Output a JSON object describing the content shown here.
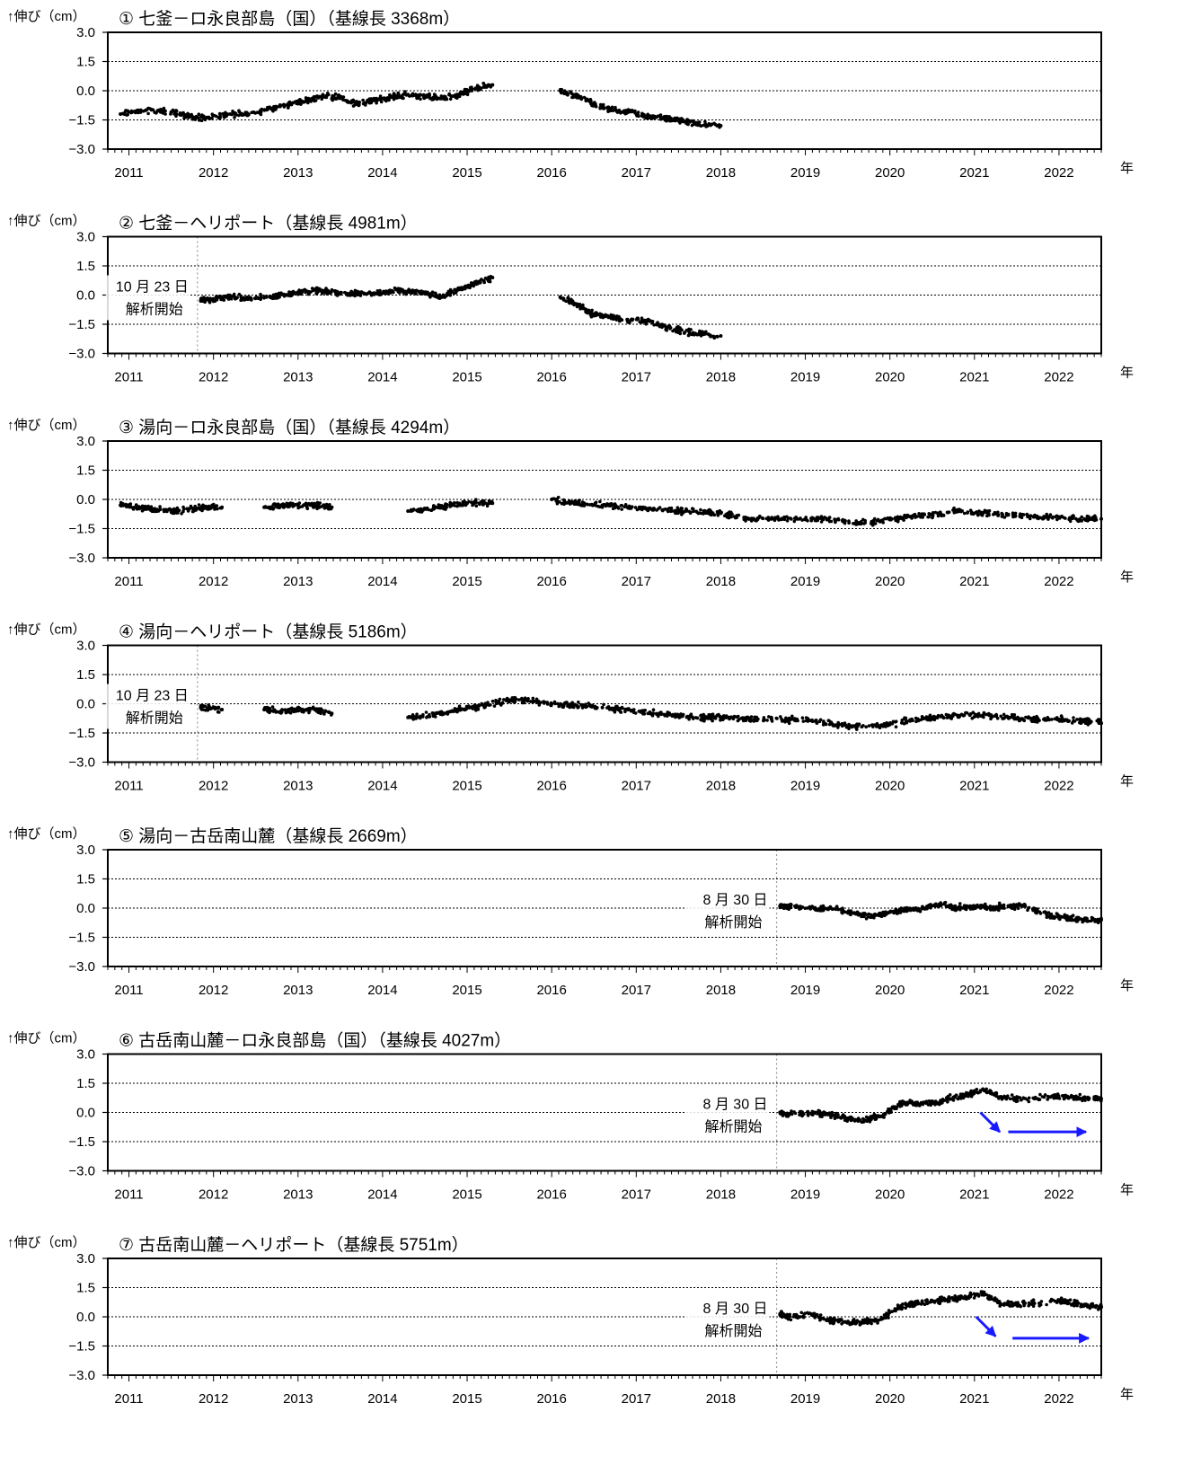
{
  "ylabel": "↑伸び（cm）",
  "xunit": "年",
  "colors": {
    "points": "#000000",
    "arrow": "#1a1aff",
    "frame": "#000000",
    "grid": "#000000"
  },
  "chart_data": [
    {
      "type": "scatter",
      "title": "① 七釜－ロ永良部島（国）（基線長 3368m）",
      "ylim": [
        -3.0,
        3.0
      ],
      "yticks": [
        "3.0",
        "1.5",
        "0.0",
        "-1.5",
        "-3.0"
      ],
      "xlim": [
        2010.75,
        2022.5
      ],
      "xticks": [
        "2011",
        "2012",
        "2013",
        "2014",
        "2015",
        "2016",
        "2017",
        "2018",
        "2019",
        "2020",
        "2021",
        "2022"
      ],
      "grid": true,
      "series": [
        {
          "x": [
            2010.9,
            2011.2,
            2011.5,
            2011.7,
            2011.9,
            2012.2,
            2012.4,
            2012.7,
            2012.9,
            2013.1,
            2013.3,
            2013.5,
            2013.7,
            2013.9,
            2014.1,
            2014.3,
            2014.5,
            2014.7,
            2014.9,
            2015.1,
            2015.3,
            2016.1,
            2016.3,
            2016.5,
            2016.7,
            2016.9,
            2017.1,
            2017.3,
            2017.5,
            2017.7,
            2018.0
          ],
          "y": [
            -1.2,
            -1.0,
            -1.1,
            -1.3,
            -1.4,
            -1.2,
            -1.2,
            -0.9,
            -0.7,
            -0.5,
            -0.3,
            -0.3,
            -0.7,
            -0.5,
            -0.3,
            -0.2,
            -0.3,
            -0.4,
            -0.2,
            0.1,
            0.3,
            0.0,
            -0.3,
            -0.7,
            -1.0,
            -1.1,
            -1.3,
            -1.4,
            -1.5,
            -1.7,
            -1.8
          ]
        }
      ],
      "annotations": [],
      "arrows": []
    },
    {
      "type": "scatter",
      "title": "② 七釜－ヘリポート（基線長 4981m）",
      "ylim": [
        -3.0,
        3.0
      ],
      "yticks": [
        "3.0",
        "1.5",
        "0.0",
        "-1.5",
        "-3.0"
      ],
      "xlim": [
        2010.75,
        2022.5
      ],
      "xticks": [
        "2011",
        "2012",
        "2013",
        "2014",
        "2015",
        "2016",
        "2017",
        "2018",
        "2019",
        "2020",
        "2021",
        "2022"
      ],
      "grid": true,
      "start_line": 2011.81,
      "series": [
        {
          "x": [
            2011.85,
            2012.0,
            2012.2,
            2012.4,
            2012.7,
            2012.9,
            2013.1,
            2013.3,
            2013.5,
            2013.7,
            2013.9,
            2014.1,
            2014.3,
            2014.5,
            2014.7,
            2014.9,
            2015.1,
            2015.3,
            2016.1,
            2016.3,
            2016.5,
            2016.7,
            2016.9,
            2017.1,
            2017.3,
            2017.5,
            2017.7,
            2018.0
          ],
          "y": [
            -0.3,
            -0.2,
            -0.1,
            -0.2,
            -0.1,
            0.1,
            0.2,
            0.2,
            0.1,
            0.1,
            0.1,
            0.2,
            0.2,
            0.1,
            -0.1,
            0.3,
            0.6,
            0.9,
            -0.1,
            -0.5,
            -1.0,
            -1.1,
            -1.3,
            -1.3,
            -1.6,
            -1.8,
            -2.0,
            -2.1
          ]
        }
      ],
      "annotations": [
        {
          "date": "10 月 23 日",
          "text": "解析開始"
        }
      ],
      "arrows": []
    },
    {
      "type": "scatter",
      "title": "③ 湯向－ロ永良部島（国）（基線長 4294m）",
      "ylim": [
        -3.0,
        3.0
      ],
      "yticks": [
        "3.0",
        "1.5",
        "0.0",
        "-1.5",
        "-3.0"
      ],
      "xlim": [
        2010.75,
        2022.5
      ],
      "xticks": [
        "2011",
        "2012",
        "2013",
        "2014",
        "2015",
        "2016",
        "2017",
        "2018",
        "2019",
        "2020",
        "2021",
        "2022"
      ],
      "grid": true,
      "series": [
        {
          "x": [
            2010.9,
            2011.1,
            2011.3,
            2011.5,
            2011.7,
            2011.9,
            2012.1,
            2012.6,
            2012.8,
            2013.0,
            2013.2,
            2013.4,
            2014.3,
            2014.6,
            2014.8,
            2015.0,
            2015.3,
            2016.0,
            2016.3,
            2016.6,
            2016.9,
            2017.2,
            2017.5,
            2017.8,
            2018.0,
            2018.3,
            2018.6,
            2018.9,
            2019.2,
            2019.6,
            2019.9,
            2020.2,
            2020.5,
            2020.8,
            2021.1,
            2021.4,
            2021.7,
            2022.0,
            2022.3,
            2022.5
          ],
          "y": [
            -0.3,
            -0.4,
            -0.5,
            -0.6,
            -0.5,
            -0.4,
            -0.4,
            -0.4,
            -0.3,
            -0.3,
            -0.3,
            -0.4,
            -0.6,
            -0.5,
            -0.3,
            -0.2,
            -0.2,
            0.0,
            -0.2,
            -0.3,
            -0.4,
            -0.5,
            -0.6,
            -0.6,
            -0.7,
            -1.0,
            -1.0,
            -1.0,
            -1.0,
            -1.2,
            -1.1,
            -0.9,
            -0.8,
            -0.6,
            -0.7,
            -0.8,
            -0.9,
            -0.9,
            -1.0,
            -1.0
          ]
        }
      ],
      "annotations": [],
      "arrows": []
    },
    {
      "type": "scatter",
      "title": "④ 湯向－ヘリポート（基線長 5186m）",
      "ylim": [
        -3.0,
        3.0
      ],
      "yticks": [
        "3.0",
        "1.5",
        "0.0",
        "-1.5",
        "-3.0"
      ],
      "xlim": [
        2010.75,
        2022.5
      ],
      "xticks": [
        "2011",
        "2012",
        "2013",
        "2014",
        "2015",
        "2016",
        "2017",
        "2018",
        "2019",
        "2020",
        "2021",
        "2022"
      ],
      "grid": true,
      "start_line": 2011.81,
      "series": [
        {
          "x": [
            2011.85,
            2012.1,
            2012.6,
            2012.8,
            2013.0,
            2013.2,
            2013.4,
            2014.3,
            2014.6,
            2014.8,
            2015.0,
            2015.2,
            2015.5,
            2015.7,
            2016.0,
            2016.3,
            2016.6,
            2016.9,
            2017.2,
            2017.5,
            2017.8,
            2018.0,
            2018.3,
            2018.6,
            2018.9,
            2019.3,
            2019.6,
            2019.9,
            2020.2,
            2020.5,
            2020.8,
            2021.1,
            2021.4,
            2021.7,
            2022.0,
            2022.3,
            2022.5
          ],
          "y": [
            -0.2,
            -0.3,
            -0.3,
            -0.4,
            -0.3,
            -0.3,
            -0.5,
            -0.7,
            -0.6,
            -0.4,
            -0.2,
            -0.1,
            0.2,
            0.2,
            0.0,
            -0.1,
            -0.2,
            -0.3,
            -0.5,
            -0.6,
            -0.7,
            -0.7,
            -0.8,
            -0.8,
            -0.8,
            -1.0,
            -1.2,
            -1.1,
            -0.9,
            -0.7,
            -0.6,
            -0.6,
            -0.7,
            -0.8,
            -0.8,
            -0.9,
            -1.0
          ]
        }
      ],
      "annotations": [
        {
          "date": "10 月 23 日",
          "text": "解析開始"
        }
      ],
      "arrows": []
    },
    {
      "type": "scatter",
      "title": "⑤ 湯向－古岳南山麓（基線長 2669m）",
      "ylim": [
        -3.0,
        3.0
      ],
      "yticks": [
        "3.0",
        "1.5",
        "0.0",
        "-1.5",
        "-3.0"
      ],
      "xlim": [
        2010.75,
        2022.5
      ],
      "xticks": [
        "2011",
        "2012",
        "2013",
        "2014",
        "2015",
        "2016",
        "2017",
        "2018",
        "2019",
        "2020",
        "2021",
        "2022"
      ],
      "grid": true,
      "start_line": 2018.66,
      "series": [
        {
          "x": [
            2018.7,
            2018.8,
            2019.1,
            2019.3,
            2019.6,
            2019.8,
            2020.0,
            2020.2,
            2020.4,
            2020.6,
            2020.8,
            2021.0,
            2021.2,
            2021.4,
            2021.6,
            2021.9,
            2022.1,
            2022.3,
            2022.5
          ],
          "y": [
            0.1,
            0.1,
            0.0,
            0.0,
            -0.3,
            -0.4,
            -0.2,
            -0.1,
            0.0,
            0.2,
            0.0,
            0.1,
            0.0,
            0.1,
            0.1,
            -0.4,
            -0.5,
            -0.6,
            -0.6
          ]
        }
      ],
      "annotations": [
        {
          "date": "8 月 30 日",
          "text": "解析開始"
        }
      ],
      "arrows": []
    },
    {
      "type": "scatter",
      "title": "⑥ 古岳南山麓－ロ永良部島（国）（基線長 4027m）",
      "ylim": [
        -3.0,
        3.0
      ],
      "yticks": [
        "3.0",
        "1.5",
        "0.0",
        "-1.5",
        "-3.0"
      ],
      "xlim": [
        2010.75,
        2022.5
      ],
      "xticks": [
        "2011",
        "2012",
        "2013",
        "2014",
        "2015",
        "2016",
        "2017",
        "2018",
        "2019",
        "2020",
        "2021",
        "2022"
      ],
      "grid": true,
      "start_line": 2018.66,
      "series": [
        {
          "x": [
            2018.7,
            2018.8,
            2019.1,
            2019.3,
            2019.5,
            2019.7,
            2019.9,
            2020.1,
            2020.3,
            2020.5,
            2020.7,
            2020.9,
            2021.1,
            2021.3,
            2021.5,
            2021.9,
            2022.1,
            2022.3,
            2022.5
          ],
          "y": [
            0.0,
            -0.1,
            0.0,
            -0.1,
            -0.3,
            -0.4,
            -0.2,
            0.4,
            0.5,
            0.5,
            0.7,
            0.9,
            1.2,
            0.8,
            0.7,
            0.8,
            0.8,
            0.7,
            0.7
          ]
        }
      ],
      "annotations": [
        {
          "date": "8 月 30 日",
          "text": "解析開始"
        }
      ],
      "arrows": [
        {
          "from": [
            2021.07,
            -0.0
          ],
          "to": [
            2021.3,
            -1.0
          ]
        },
        {
          "from": [
            2021.4,
            -1.0
          ],
          "to": [
            2022.32,
            -1.0
          ]
        }
      ]
    },
    {
      "type": "scatter",
      "title": "⑦ 古岳南山麓－ヘリポート（基線長 5751m）",
      "ylim": [
        -3.0,
        3.0
      ],
      "yticks": [
        "3.0",
        "1.5",
        "0.0",
        "-1.5",
        "-3.0"
      ],
      "xlim": [
        2010.75,
        2022.5
      ],
      "xticks": [
        "2011",
        "2012",
        "2013",
        "2014",
        "2015",
        "2016",
        "2017",
        "2018",
        "2019",
        "2020",
        "2021",
        "2022"
      ],
      "grid": true,
      "start_line": 2018.66,
      "series": [
        {
          "x": [
            2018.7,
            2018.8,
            2019.1,
            2019.3,
            2019.5,
            2019.7,
            2019.9,
            2020.1,
            2020.3,
            2020.5,
            2020.7,
            2020.9,
            2021.1,
            2021.3,
            2021.5,
            2021.9,
            2022.1,
            2022.3,
            2022.5
          ],
          "y": [
            0.1,
            0.0,
            0.1,
            -0.2,
            -0.3,
            -0.3,
            -0.1,
            0.5,
            0.7,
            0.8,
            0.9,
            1.0,
            1.2,
            0.7,
            0.6,
            0.8,
            0.8,
            0.6,
            0.5
          ]
        }
      ],
      "annotations": [
        {
          "date": "8 月 30 日",
          "text": "解析開始"
        }
      ],
      "arrows": [
        {
          "from": [
            2021.02,
            -0.0
          ],
          "to": [
            2021.25,
            -1.0
          ]
        },
        {
          "from": [
            2021.45,
            -1.1
          ],
          "to": [
            2022.35,
            -1.1
          ]
        }
      ]
    }
  ]
}
